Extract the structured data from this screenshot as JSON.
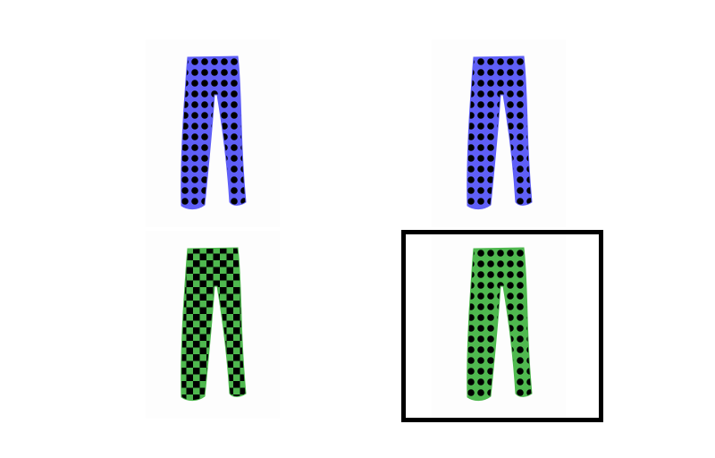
{
  "options": [
    {
      "id": "pants-option-1",
      "color": "#5f5ff7",
      "pattern": "dots"
    },
    {
      "id": "pants-option-2",
      "color": "#5f5ff7",
      "pattern": "dots"
    },
    {
      "id": "pants-option-3",
      "color": "#4fb84f",
      "pattern": "checker"
    },
    {
      "id": "pants-option-4",
      "color": "#4fb84f",
      "pattern": "dots"
    }
  ],
  "selected_index": 3,
  "pattern_color": "#000000"
}
